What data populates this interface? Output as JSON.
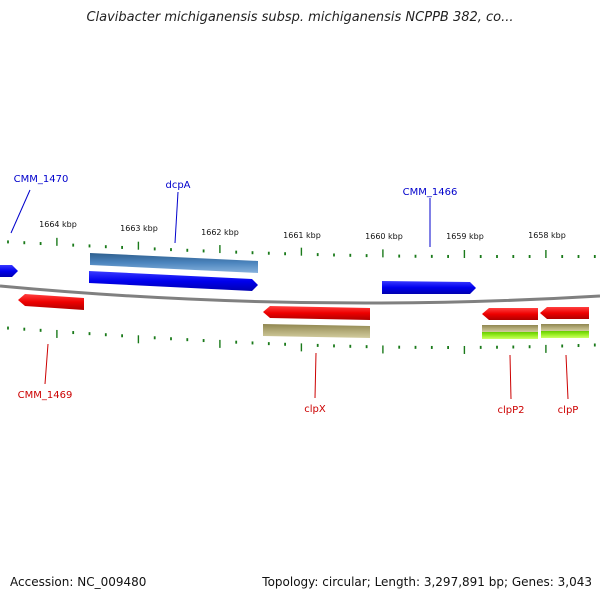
{
  "title": "Clavibacter michiganensis subsp. michiganensis NCPPB 382, co...",
  "footer": {
    "accession_label": "Accession:",
    "accession": "NC_009480",
    "topology_label": "Topology:",
    "topology": "circular",
    "length_label": "Length:",
    "length": "3,297,891 bp",
    "genes_label": "Genes:",
    "genes": "3,043"
  },
  "colors": {
    "backbone": "#808080",
    "tick": "#1a7a1a",
    "forward_label": "#0000cc",
    "reverse_label": "#cc0000"
  },
  "scale": {
    "unit": "kbp",
    "ticks_kbp": [
      1664,
      1663,
      1662,
      1661,
      1660,
      1659,
      1658
    ]
  },
  "genes": [
    {
      "name": "CMM_1470",
      "strand": "+",
      "labeled": true
    },
    {
      "name": "dcpA",
      "strand": "+",
      "labeled": true
    },
    {
      "name": "CMM_1466",
      "strand": "+",
      "labeled": true
    },
    {
      "name": "CMM_1469",
      "strand": "-",
      "labeled": true
    },
    {
      "name": "clpX",
      "strand": "-",
      "labeled": true
    },
    {
      "name": "clpP2",
      "strand": "-",
      "labeled": true
    },
    {
      "name": "clpP",
      "strand": "-",
      "labeled": true
    }
  ]
}
